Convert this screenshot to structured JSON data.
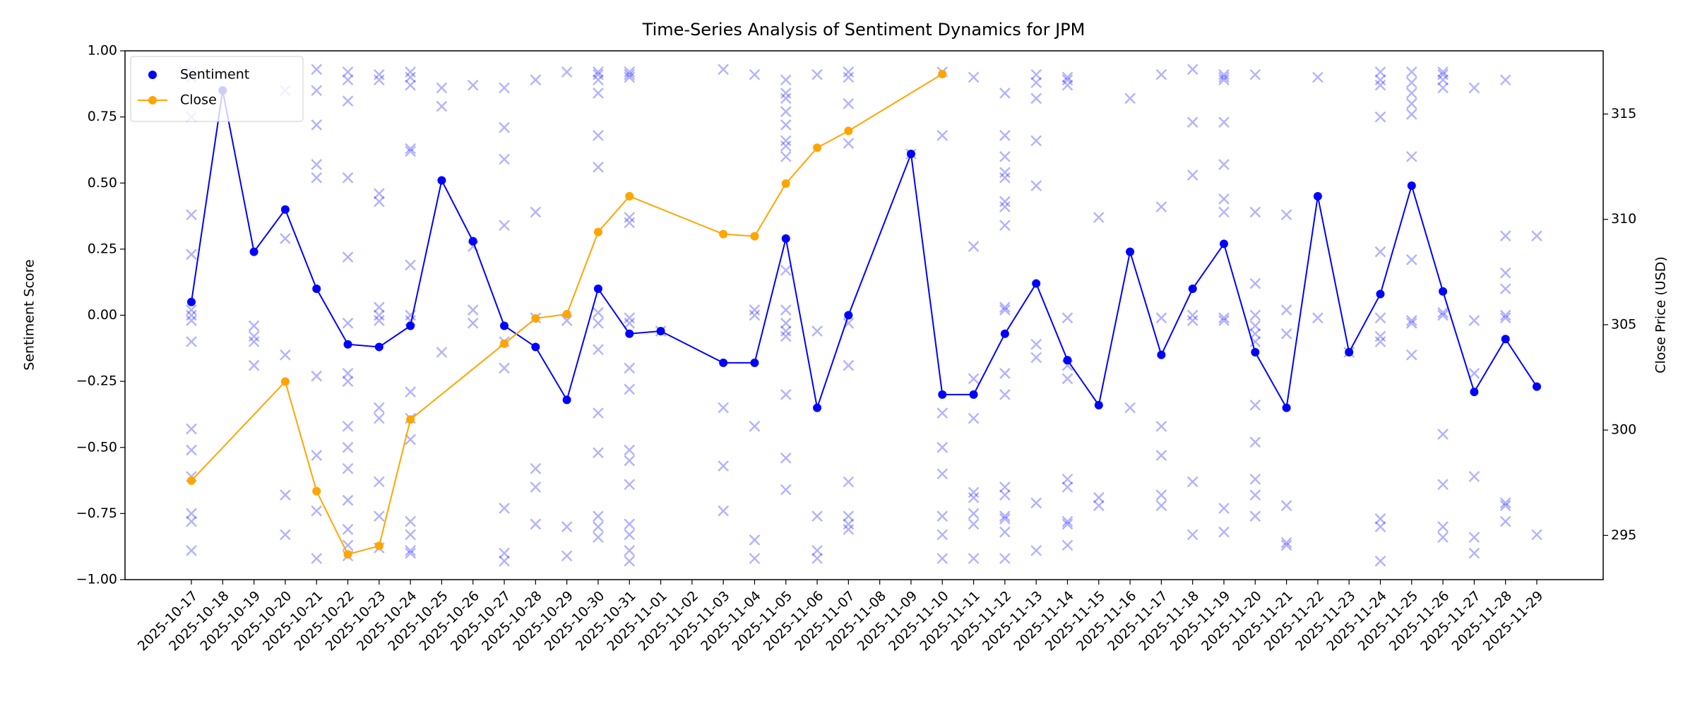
{
  "chart_data": {
    "type": "line",
    "title": "Time-Series Analysis of Sentiment Dynamics for JPM",
    "ylabel": "Sentiment Score",
    "y2label": "Close Price (USD)",
    "legend": "upper left",
    "categories": [
      "2025-10-17",
      "2025-10-18",
      "2025-10-19",
      "2025-10-20",
      "2025-10-21",
      "2025-10-22",
      "2025-10-23",
      "2025-10-24",
      "2025-10-25",
      "2025-10-26",
      "2025-10-27",
      "2025-10-28",
      "2025-10-29",
      "2025-10-30",
      "2025-10-31",
      "2025-11-01",
      "2025-11-02",
      "2025-11-03",
      "2025-11-04",
      "2025-11-05",
      "2025-11-06",
      "2025-11-07",
      "2025-11-08",
      "2025-11-09",
      "2025-11-10",
      "2025-11-11",
      "2025-11-12",
      "2025-11-13",
      "2025-11-14",
      "2025-11-15",
      "2025-11-16",
      "2025-11-17",
      "2025-11-18",
      "2025-11-19",
      "2025-11-20",
      "2025-11-21",
      "2025-11-22",
      "2025-11-23",
      "2025-11-24",
      "2025-11-25",
      "2025-11-26",
      "2025-11-27",
      "2025-11-28",
      "2025-11-29"
    ],
    "ylim": [
      -1,
      1
    ],
    "yticks": [
      {
        "value": -1,
        "label": "−1.00"
      },
      {
        "value": -0.75,
        "label": "−0.75"
      },
      {
        "value": -0.5,
        "label": "−0.50"
      },
      {
        "value": -0.25,
        "label": "−0.25"
      },
      {
        "value": 0,
        "label": "0.00"
      },
      {
        "value": 0.25,
        "label": "0.25"
      },
      {
        "value": 0.5,
        "label": "0.50"
      },
      {
        "value": 0.75,
        "label": "0.75"
      },
      {
        "value": 1,
        "label": "1.00"
      }
    ],
    "y2lim": [
      292.9,
      318.0
    ],
    "y2ticks": [
      295,
      300,
      305,
      310,
      315
    ],
    "series": [
      {
        "type": "scatter",
        "color": "#0000ff",
        "x": [
          "2025-10-17",
          "2025-10-19",
          "2025-10-20",
          "2025-10-21",
          "2025-10-22",
          "2025-10-23",
          "2025-10-24",
          "2025-10-25",
          "2025-10-26",
          "2025-10-27",
          "2025-10-28",
          "2025-10-29",
          "2025-10-30",
          "2025-10-31",
          "2025-11-01",
          "2025-11-03",
          "2025-11-04",
          "2025-11-05",
          "2025-11-06",
          "2025-11-07",
          "2025-11-09",
          "2025-11-10",
          "2025-11-11",
          "2025-11-12",
          "2025-11-13",
          "2025-11-14",
          "2025-11-15",
          "2025-11-16",
          "2025-11-17",
          "2025-11-18",
          "2025-11-19",
          "2025-11-20",
          "2025-11-21",
          "2025-11-22",
          "2025-11-23",
          "2025-11-24",
          "2025-11-25",
          "2025-11-26",
          "2025-11-27",
          "2025-11-28",
          "2025-11-29"
        ],
        "values": [
          [
            0.92,
            0.9,
            0.75,
            0.38,
            0.23,
            0.02,
            0,
            -0.02,
            -0.1,
            -0.43,
            -0.51,
            -0.61,
            -0.75,
            -0.78,
            -0.89
          ],
          [
            -0.04,
            -0.08,
            -0.1,
            -0.19
          ],
          [
            0.85,
            0.29,
            -0.15,
            -0.68,
            -0.83
          ],
          [
            0.93,
            0.85,
            0.72,
            0.57,
            0.52,
            -0.23,
            -0.53,
            -0.74,
            -0.92
          ],
          [
            0.92,
            0.89,
            0.81,
            0.52,
            0.22,
            -0.03,
            -0.22,
            -0.25,
            -0.42,
            -0.5,
            -0.58,
            -0.7,
            -0.81,
            -0.87,
            -0.91
          ],
          [
            0.91,
            0.89,
            0.46,
            0.43,
            0.03,
            0,
            -0.02,
            -0.35,
            -0.39,
            -0.63,
            -0.76,
            -0.88
          ],
          [
            0.92,
            0.9,
            0.87,
            0.63,
            0.62,
            0.19,
            0,
            -0.02,
            -0.29,
            -0.39,
            -0.47,
            -0.78,
            -0.83,
            -0.89,
            -0.9
          ],
          [
            0.86,
            0.79,
            -0.14
          ],
          [
            0.87,
            0.26,
            0.02,
            -0.03
          ],
          [
            0.86,
            0.71,
            0.59,
            0.34,
            -0.1,
            -0.2,
            -0.73,
            -0.9,
            -0.93
          ],
          [
            0.89,
            0.39,
            -0.01,
            -0.58,
            -0.65,
            -0.79
          ],
          [
            0.92,
            -0.02,
            -0.8,
            -0.91
          ],
          [
            0.92,
            0.91,
            0.89,
            0.84,
            0.68,
            0.56,
            0.01,
            -0.03,
            -0.13,
            -0.37,
            -0.52,
            -0.76,
            -0.8,
            -0.84
          ],
          [
            0.92,
            0.91,
            0.9,
            0.37,
            0.35,
            -0.01,
            -0.03,
            -0.2,
            -0.28,
            -0.51,
            -0.55,
            -0.64,
            -0.79,
            -0.83,
            -0.89,
            -0.93
          ],
          [
            -0.06
          ],
          [
            0.93,
            -0.35,
            -0.57,
            -0.74
          ],
          [
            0.91,
            0.02,
            0,
            -0.42,
            -0.85,
            -0.92
          ],
          [
            0.89,
            0.84,
            0.82,
            0.77,
            0.72,
            0.66,
            0.64,
            0.6,
            0.17,
            0.02,
            -0.03,
            -0.06,
            -0.08,
            -0.3,
            -0.54,
            -0.66
          ],
          [
            0.91,
            -0.06,
            -0.76,
            -0.89,
            -0.92
          ],
          [
            0.92,
            0.9,
            0.8,
            0.65,
            -0.03,
            -0.19,
            -0.63,
            -0.76,
            -0.79,
            -0.81
          ],
          [
            0.61
          ],
          [
            0.92,
            0.68,
            -0.37,
            -0.5,
            -0.6,
            -0.76,
            -0.83,
            -0.92
          ],
          [
            0.9,
            0.26,
            -0.24,
            -0.39,
            -0.67,
            -0.69,
            -0.75,
            -0.79,
            -0.92
          ],
          [
            0.84,
            0.68,
            0.6,
            0.54,
            0.52,
            0.43,
            0.41,
            0.34,
            0.03,
            0.02,
            -0.22,
            -0.3,
            -0.65,
            -0.68,
            -0.76,
            -0.77,
            -0.82,
            -0.92
          ],
          [
            0.91,
            0.88,
            0.82,
            0.66,
            0.49,
            -0.11,
            -0.16,
            -0.71,
            -0.89
          ],
          [
            0.9,
            0.89,
            0.87,
            -0.01,
            -0.19,
            -0.24,
            -0.62,
            -0.65,
            -0.78,
            -0.79,
            -0.87
          ],
          [
            0.37,
            -0.69,
            -0.72
          ],
          [
            0.82,
            -0.35
          ],
          [
            0.91,
            0.41,
            -0.01,
            -0.42,
            -0.53,
            -0.68,
            -0.72
          ],
          [
            0.93,
            0.73,
            0.53,
            0,
            -0.02,
            -0.63,
            -0.83
          ],
          [
            0.91,
            0.9,
            0.89,
            0.73,
            0.57,
            0.44,
            0.39,
            -0.01,
            -0.02,
            -0.73,
            -0.82
          ],
          [
            0.91,
            0.39,
            0.12,
            0,
            -0.04,
            -0.07,
            -0.1,
            -0.34,
            -0.48,
            -0.62,
            -0.68,
            -0.76
          ],
          [
            0.38,
            0.02,
            -0.07,
            -0.72,
            -0.86,
            -0.87
          ],
          [
            0.9,
            -0.01
          ],
          [
            -0.14
          ],
          [
            0.92,
            0.89,
            0.87,
            0.75,
            0.24,
            -0.01,
            -0.08,
            -0.1,
            -0.77,
            -0.8,
            -0.93
          ],
          [
            0.92,
            0.88,
            0.84,
            0.8,
            0.76,
            0.6,
            0.21,
            -0.02,
            -0.03,
            -0.15
          ],
          [
            0.92,
            0.91,
            0.89,
            0.86,
            0,
            0.01,
            -0.45,
            -0.64,
            -0.8,
            -0.84
          ],
          [
            0.86,
            -0.02,
            -0.22,
            -0.61,
            -0.84,
            -0.9
          ],
          [
            0.89,
            0.3,
            0.16,
            0.1,
            0,
            -0.01,
            -0.71,
            -0.72,
            -0.78
          ],
          [
            0.3,
            -0.83
          ]
        ]
      },
      {
        "name": "Sentiment",
        "type": "line",
        "color": "#0000ff",
        "x": [
          "2025-10-17",
          "2025-10-18",
          "2025-10-19",
          "2025-10-20",
          "2025-10-21",
          "2025-10-22",
          "2025-10-23",
          "2025-10-24",
          "2025-10-25",
          "2025-10-26",
          "2025-10-27",
          "2025-10-28",
          "2025-10-29",
          "2025-10-30",
          "2025-10-31",
          "2025-11-01",
          "2025-11-03",
          "2025-11-04",
          "2025-11-05",
          "2025-11-06",
          "2025-11-07",
          "2025-11-09",
          "2025-11-10",
          "2025-11-11",
          "2025-11-12",
          "2025-11-13",
          "2025-11-14",
          "2025-11-15",
          "2025-11-16",
          "2025-11-17",
          "2025-11-18",
          "2025-11-19",
          "2025-11-20",
          "2025-11-21",
          "2025-11-22",
          "2025-11-23",
          "2025-11-24",
          "2025-11-25",
          "2025-11-26",
          "2025-11-27",
          "2025-11-28",
          "2025-11-29"
        ],
        "values": [
          0.05,
          0.85,
          0.24,
          0.4,
          0.1,
          -0.11,
          -0.12,
          -0.04,
          0.51,
          0.28,
          -0.04,
          -0.12,
          -0.32,
          0.1,
          -0.07,
          -0.06,
          -0.18,
          -0.18,
          0.29,
          -0.35,
          0,
          0.61,
          -0.3,
          -0.3,
          -0.07,
          0.12,
          -0.17,
          -0.34,
          0.24,
          -0.15,
          0.1,
          0.27,
          -0.14,
          -0.35,
          0.45,
          -0.14,
          0.08,
          0.49,
          0.09,
          -0.29,
          -0.09,
          -0.27
        ]
      },
      {
        "name": "Close",
        "type": "line",
        "color": "#ffa500",
        "axis": "y2",
        "x": [
          "2025-10-17",
          "2025-10-20",
          "2025-10-21",
          "2025-10-22",
          "2025-10-23",
          "2025-10-24",
          "2025-10-27",
          "2025-10-28",
          "2025-10-29",
          "2025-10-30",
          "2025-10-31",
          "2025-11-03",
          "2025-11-04",
          "2025-11-05",
          "2025-11-06",
          "2025-11-07",
          "2025-11-10"
        ],
        "values": [
          297.6,
          302.3,
          297.1,
          294.1,
          294.5,
          300.5,
          304.1,
          305.3,
          305.5,
          309.4,
          311.1,
          309.3,
          309.2,
          311.7,
          313.4,
          314.2,
          316.9
        ]
      }
    ]
  }
}
